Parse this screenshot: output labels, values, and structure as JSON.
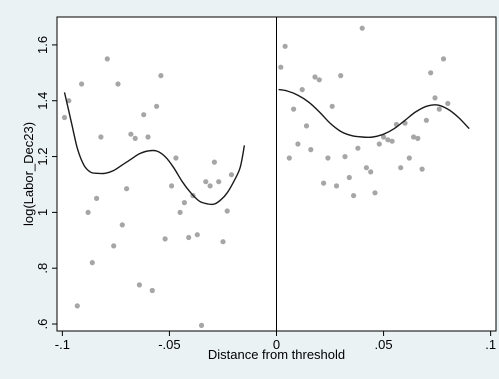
{
  "chart_data": {
    "type": "scatter",
    "xlabel": "Distance from threshold",
    "ylabel": "log(Labor_Dec23)",
    "xlim": [
      -0.1025,
      0.1025
    ],
    "ylim": [
      0.575,
      1.7
    ],
    "x_ticks": [
      -0.1,
      -0.05,
      0,
      0.05,
      0.1
    ],
    "x_tick_labels": [
      "-.1",
      "-.05",
      "0",
      ".05",
      ".1"
    ],
    "y_ticks": [
      0.6,
      0.8,
      1.0,
      1.2,
      1.4,
      1.6
    ],
    "y_tick_labels": [
      ".6",
      ".8",
      "1",
      "1.2",
      "1.4",
      "1.6"
    ],
    "grid": false,
    "legend": "none",
    "threshold_line_x": 0,
    "colors": {
      "points": "#a6a6a6",
      "fit": "#1a1a1a",
      "background": "#eaf2f3",
      "plot_area": "#ffffff"
    },
    "points": [
      [
        -0.099,
        1.34
      ],
      [
        -0.097,
        1.4
      ],
      [
        -0.093,
        0.665
      ],
      [
        -0.091,
        1.46
      ],
      [
        -0.088,
        1.0
      ],
      [
        -0.086,
        0.82
      ],
      [
        -0.084,
        1.05
      ],
      [
        -0.082,
        1.27
      ],
      [
        -0.079,
        1.55
      ],
      [
        -0.076,
        0.88
      ],
      [
        -0.074,
        1.46
      ],
      [
        -0.072,
        0.955
      ],
      [
        -0.07,
        1.085
      ],
      [
        -0.068,
        1.28
      ],
      [
        -0.066,
        1.265
      ],
      [
        -0.064,
        0.74
      ],
      [
        -0.062,
        1.35
      ],
      [
        -0.06,
        1.27
      ],
      [
        -0.058,
        0.72
      ],
      [
        -0.056,
        1.38
      ],
      [
        -0.054,
        1.49
      ],
      [
        -0.052,
        0.905
      ],
      [
        -0.049,
        1.095
      ],
      [
        -0.047,
        1.195
      ],
      [
        -0.045,
        1.0
      ],
      [
        -0.043,
        1.035
      ],
      [
        -0.041,
        0.91
      ],
      [
        -0.039,
        1.06
      ],
      [
        -0.037,
        0.92
      ],
      [
        -0.035,
        0.595
      ],
      [
        -0.033,
        1.11
      ],
      [
        -0.031,
        1.095
      ],
      [
        -0.029,
        1.18
      ],
      [
        -0.027,
        1.11
      ],
      [
        -0.025,
        0.895
      ],
      [
        -0.023,
        1.005
      ],
      [
        -0.021,
        1.135
      ],
      [
        0.002,
        1.52
      ],
      [
        0.004,
        1.595
      ],
      [
        0.006,
        1.195
      ],
      [
        0.008,
        1.37
      ],
      [
        0.01,
        1.245
      ],
      [
        0.012,
        1.44
      ],
      [
        0.014,
        1.31
      ],
      [
        0.016,
        1.225
      ],
      [
        0.018,
        1.485
      ],
      [
        0.02,
        1.475
      ],
      [
        0.022,
        1.105
      ],
      [
        0.024,
        1.195
      ],
      [
        0.026,
        1.38
      ],
      [
        0.028,
        1.095
      ],
      [
        0.03,
        1.49
      ],
      [
        0.032,
        1.2
      ],
      [
        0.034,
        1.125
      ],
      [
        0.036,
        1.06
      ],
      [
        0.038,
        1.23
      ],
      [
        0.04,
        1.66
      ],
      [
        0.042,
        1.16
      ],
      [
        0.044,
        1.145
      ],
      [
        0.046,
        1.07
      ],
      [
        0.048,
        1.245
      ],
      [
        0.05,
        1.27
      ],
      [
        0.052,
        1.26
      ],
      [
        0.054,
        1.255
      ],
      [
        0.056,
        1.315
      ],
      [
        0.058,
        1.16
      ],
      [
        0.06,
        1.32
      ],
      [
        0.062,
        1.195
      ],
      [
        0.064,
        1.27
      ],
      [
        0.066,
        1.265
      ],
      [
        0.068,
        1.155
      ],
      [
        0.07,
        1.33
      ],
      [
        0.072,
        1.5
      ],
      [
        0.074,
        1.41
      ],
      [
        0.076,
        1.37
      ],
      [
        0.078,
        1.55
      ],
      [
        0.08,
        1.39
      ]
    ],
    "fit_left": [
      [
        -0.099,
        1.43
      ],
      [
        -0.096,
        1.33
      ],
      [
        -0.093,
        1.23
      ],
      [
        -0.09,
        1.17
      ],
      [
        -0.087,
        1.145
      ],
      [
        -0.084,
        1.14
      ],
      [
        -0.08,
        1.14
      ],
      [
        -0.076,
        1.15
      ],
      [
        -0.072,
        1.17
      ],
      [
        -0.068,
        1.19
      ],
      [
        -0.064,
        1.21
      ],
      [
        -0.06,
        1.22
      ],
      [
        -0.056,
        1.22
      ],
      [
        -0.052,
        1.2
      ],
      [
        -0.048,
        1.16
      ],
      [
        -0.044,
        1.11
      ],
      [
        -0.04,
        1.07
      ],
      [
        -0.036,
        1.04
      ],
      [
        -0.032,
        1.03
      ],
      [
        -0.029,
        1.03
      ],
      [
        -0.026,
        1.045
      ],
      [
        -0.023,
        1.07
      ],
      [
        -0.02,
        1.11
      ],
      [
        -0.017,
        1.16
      ],
      [
        -0.015,
        1.24
      ]
    ],
    "fit_right": [
      [
        0.001,
        1.44
      ],
      [
        0.005,
        1.435
      ],
      [
        0.01,
        1.42
      ],
      [
        0.015,
        1.395
      ],
      [
        0.02,
        1.36
      ],
      [
        0.025,
        1.32
      ],
      [
        0.03,
        1.29
      ],
      [
        0.035,
        1.275
      ],
      [
        0.04,
        1.27
      ],
      [
        0.045,
        1.27
      ],
      [
        0.05,
        1.28
      ],
      [
        0.055,
        1.3
      ],
      [
        0.06,
        1.33
      ],
      [
        0.065,
        1.36
      ],
      [
        0.07,
        1.38
      ],
      [
        0.075,
        1.385
      ],
      [
        0.08,
        1.37
      ],
      [
        0.085,
        1.34
      ],
      [
        0.09,
        1.3
      ]
    ]
  }
}
